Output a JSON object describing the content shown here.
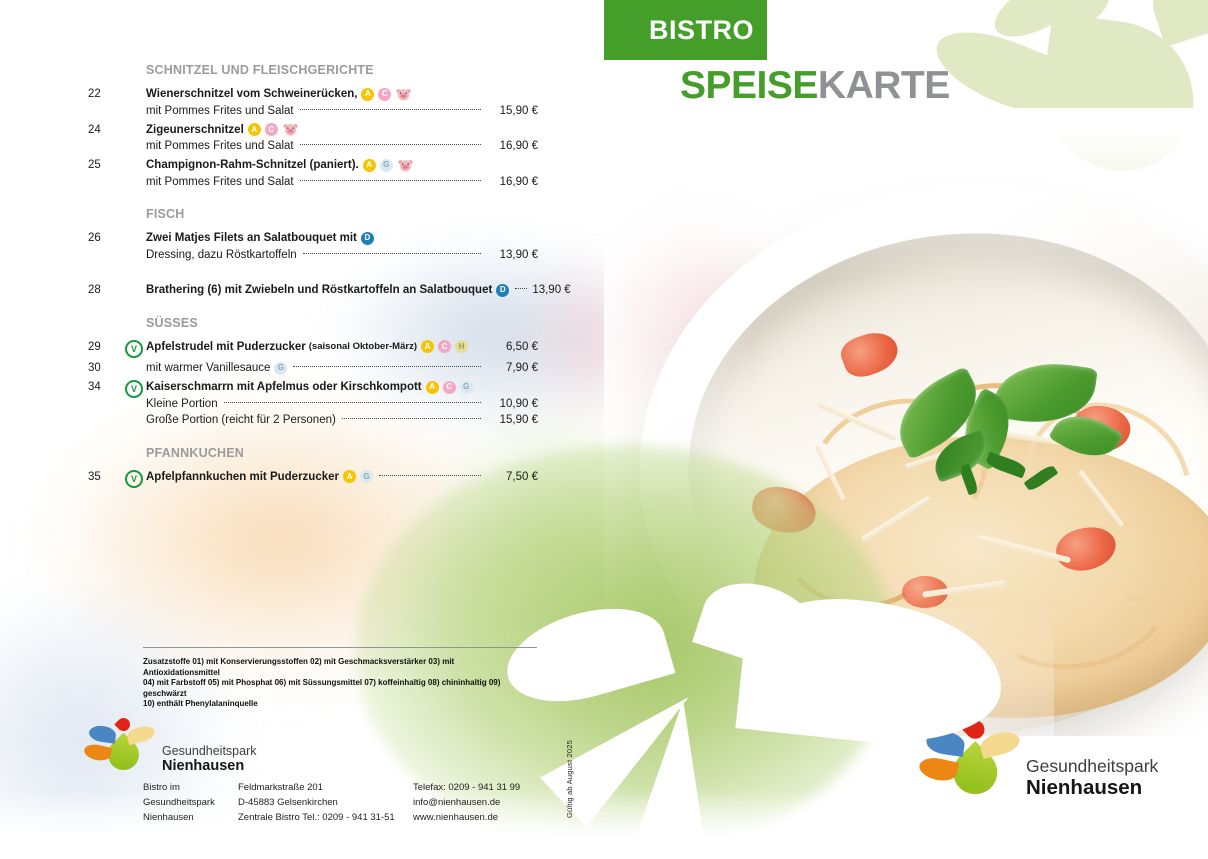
{
  "cover": {
    "badge": "BISTRO",
    "title_green": "SPEISE",
    "title_gray": "KARTE"
  },
  "validity": "Gültig ab August 2025",
  "colors": {
    "brand_green": "#459d2a",
    "title_gray": "#8f9194",
    "section_gray": "#9b9b9b",
    "flower_light_green": "#e1e9c4"
  },
  "icon_styles": {
    "A": {
      "bg": "#f5c504",
      "fg": "#ffffff"
    },
    "C": {
      "bg": "#f2a7c6",
      "fg": "#ffffff"
    },
    "G": {
      "bg": "#d9e9ef",
      "fg": "#8aa7b2"
    },
    "H": {
      "bg": "#e3df96",
      "fg": "#98986a"
    },
    "D": {
      "bg": "#1f80b8",
      "fg": "#ffffff"
    }
  },
  "menu": {
    "sections": [
      {
        "header": "SCHNITZEL UND FLEISCHGERICHTE",
        "items": [
          {
            "num": "22",
            "lines": [
              {
                "name": "Wienerschnitzel vom Schweinerücken,",
                "icons": [
                  "A",
                  "C",
                  "PIG"
                ]
              },
              {
                "desc": "mit Pommes Frites und Salat",
                "dots": true,
                "price": "15,90 €"
              }
            ]
          },
          {
            "num": "24",
            "lines": [
              {
                "name": "Zigeunerschnitzel",
                "icons": [
                  "A",
                  "C",
                  "PIG"
                ]
              },
              {
                "desc": "mit Pommes Frites und Salat",
                "dots": true,
                "price": "16,90 €"
              }
            ]
          },
          {
            "num": "25",
            "lines": [
              {
                "name": "Champignon-Rahm-Schnitzel (paniert).",
                "icons": [
                  "A",
                  "G",
                  "PIG"
                ]
              },
              {
                "desc": "mit Pommes Frites und Salat",
                "dots": true,
                "price": "16,90 €"
              }
            ]
          }
        ]
      },
      {
        "header": "FISCH",
        "items": [
          {
            "num": "26",
            "lines": [
              {
                "name": "Zwei Matjes Filets an Salatbouquet mit",
                "icons": [
                  "D"
                ]
              },
              {
                "desc": "Dressing, dazu Röstkartoffeln",
                "dots": true,
                "price": "13,90 €"
              }
            ]
          },
          {
            "num": "28",
            "gap": true,
            "lines": [
              {
                "name": "Brathering (6) mit Zwiebeln und Röstkartoffeln an Salatbouquet",
                "icons": [
                  "D"
                ],
                "dots": true,
                "price": "13,90 €"
              }
            ]
          }
        ]
      },
      {
        "header": "SÜSSES",
        "items": [
          {
            "num": "29",
            "veg": true,
            "lines": [
              {
                "name": "Apfelstrudel mit Puderzucker",
                "small": "(saisonal Oktober-März)",
                "icons": [
                  "A",
                  "C",
                  "H"
                ],
                "price": "6,50 €"
              }
            ]
          },
          {
            "num": "30",
            "lines": [
              {
                "desc": "mit warmer Vanillesauce",
                "icons": [
                  "G"
                ],
                "dots": true,
                "price": "7,90 €"
              }
            ]
          },
          {
            "num": "34",
            "veg": true,
            "lines": [
              {
                "name": "Kaiserschmarrn mit Apfelmus oder Kirschkompott",
                "icons": [
                  "A",
                  "C",
                  "G"
                ]
              },
              {
                "desc": "Kleine Portion",
                "dots": true,
                "price": "10,90 €"
              },
              {
                "desc": "Große Portion (reicht für 2 Personen)",
                "dots": true,
                "price": "15,90 €"
              }
            ]
          }
        ]
      },
      {
        "header": "PFANNKUCHEN",
        "items": [
          {
            "num": "35",
            "veg": true,
            "lines": [
              {
                "name": "Apfelpfannkuchen mit Puderzucker",
                "icons": [
                  "A",
                  "G"
                ],
                "dots": true,
                "price": "7,50 €"
              }
            ]
          }
        ]
      }
    ]
  },
  "footnote": {
    "lines": [
      "Zusatzstoffe 01)  mit Konservierungsstoffen 02) mit Geschmacksverstärker 03) mit Antioxidationsmittel",
      "04) mit Farbstoff 05) mit Phosphat 06) mit Süssungsmittel 07) koffeinhaltig 08) chininhaltig 09) geschwärzt",
      "10) enthält Phenylalaninquelle"
    ]
  },
  "logo_left": {
    "line1": "Gesundheitspark",
    "line2": "Nienhausen"
  },
  "logo_right": {
    "line1": "Gesundheitspark",
    "line2": "Nienhausen"
  },
  "contact": {
    "col1": [
      "Bistro im",
      "Gesundheitspark",
      "Nienhausen"
    ],
    "col2": [
      "Feldmarkstraße 201",
      "D-45883 Gelsenkirchen",
      "Zentrale Bistro Tel.: 0209 - 941 31-51"
    ],
    "col3": [
      "Telefax: 0209 - 941 31 99",
      "info@nienhausen.de",
      "www.nienhausen.de"
    ]
  }
}
